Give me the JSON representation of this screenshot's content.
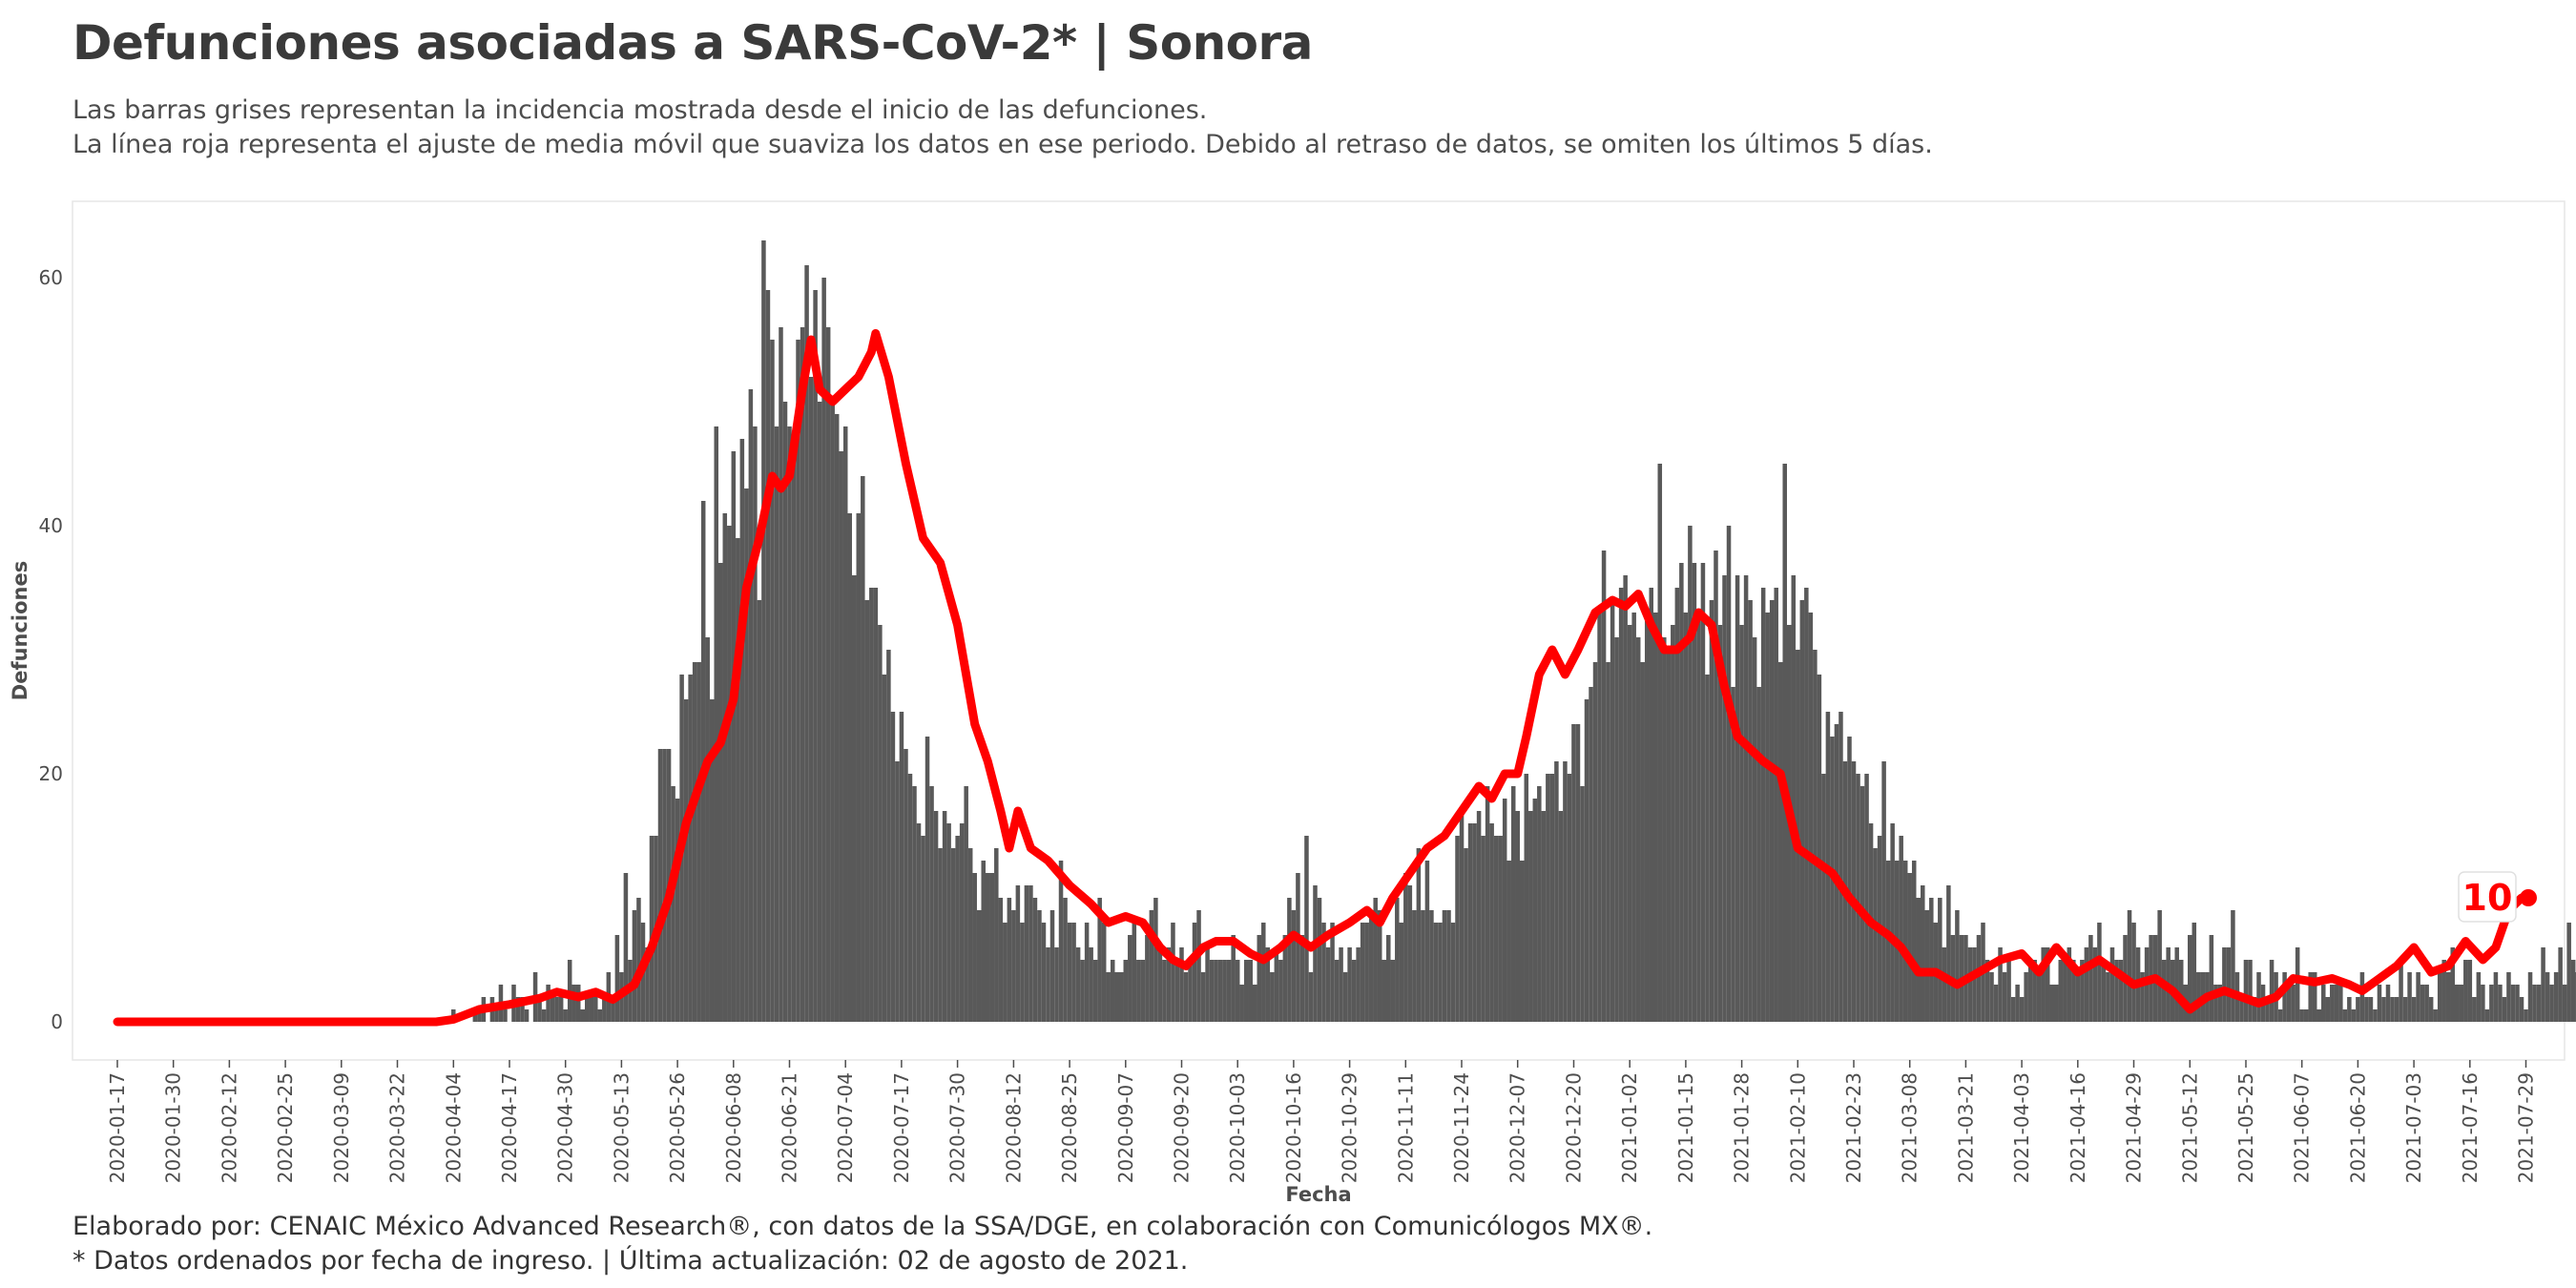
{
  "title": "Defunciones asociadas a SARS-CoV-2* | Sonora",
  "subtitle_lines": [
    "Las barras grises representan la incidencia mostrada desde el inicio de las defunciones.",
    "La línea roja representa el ajuste de media móvil que suaviza los datos en ese periodo. Debido al retraso de datos, se omiten los últimos 5 días."
  ],
  "caption_lines": [
    "Elaborado por: CENAIC México Advanced Research®, con datos de la SSA/DGE, en colaboración con Comunicólogos MX®.",
    "* Datos ordenados por fecha de ingreso. | Última actualización: 02 de agosto de 2021."
  ],
  "colors": {
    "bars": "#595959",
    "line": "#ff0000",
    "panel_border": "#e6e6e6"
  },
  "chart_data": {
    "type": "bar",
    "xlabel": "Fecha",
    "ylabel": "Defunciones",
    "x_range": [
      "2020-01-17",
      "2021-07-28"
    ],
    "ylim": [
      0,
      63
    ],
    "y_ticks": [
      0,
      20,
      40,
      60
    ],
    "x_ticks": [
      "2020-01-17",
      "2020-01-30",
      "2020-02-12",
      "2020-02-25",
      "2020-03-09",
      "2020-03-22",
      "2020-04-04",
      "2020-04-17",
      "2020-04-30",
      "2020-05-13",
      "2020-05-26",
      "2020-06-08",
      "2020-06-21",
      "2020-07-04",
      "2020-07-17",
      "2020-07-30",
      "2020-08-12",
      "2020-08-25",
      "2020-09-07",
      "2020-09-20",
      "2020-10-03",
      "2020-10-16",
      "2020-10-29",
      "2020-11-11",
      "2020-11-24",
      "2020-12-07",
      "2020-12-20",
      "2021-01-02",
      "2021-01-15",
      "2021-01-28",
      "2021-02-10",
      "2021-02-23",
      "2021-03-08",
      "2021-03-21",
      "2021-04-03",
      "2021-04-16",
      "2021-04-29",
      "2021-05-12",
      "2021-05-25",
      "2021-06-07",
      "2021-06-20",
      "2021-07-03",
      "2021-07-16",
      "2021-07-29"
    ],
    "grid": false,
    "legend": "none",
    "bars": {
      "start_date": "2020-01-17",
      "values": [
        0,
        0,
        0,
        0,
        0,
        0,
        0,
        0,
        0,
        0,
        0,
        0,
        0,
        0,
        0,
        0,
        0,
        0,
        0,
        0,
        0,
        0,
        0,
        0,
        0,
        0,
        0,
        0,
        0,
        0,
        0,
        0,
        0,
        0,
        0,
        0,
        0,
        0,
        0,
        0,
        0,
        0,
        0,
        0,
        0,
        0,
        0,
        0,
        0,
        0,
        0,
        0,
        0,
        0,
        0,
        0,
        0,
        0,
        0,
        0,
        0,
        0,
        0,
        0,
        0,
        0,
        0,
        0,
        0,
        0,
        0,
        0,
        0,
        0,
        0,
        0,
        0,
        0,
        1,
        0,
        0,
        0,
        0,
        1,
        1,
        2,
        0,
        2,
        1,
        3,
        1,
        0,
        3,
        2,
        2,
        1,
        0,
        4,
        2,
        1,
        3,
        2,
        2,
        2,
        1,
        5,
        3,
        3,
        1,
        2,
        2,
        2,
        1,
        2,
        4,
        2,
        7,
        4,
        12,
        5,
        9,
        10,
        8,
        6,
        15,
        15,
        22,
        22,
        22,
        19,
        18,
        28,
        26,
        28,
        29,
        29,
        42,
        31,
        26,
        48,
        37,
        41,
        40,
        46,
        39,
        47,
        43,
        51,
        48,
        34,
        63,
        59,
        55,
        48,
        56,
        50,
        48,
        47,
        55,
        56,
        61,
        52,
        59,
        50,
        60,
        56,
        50,
        49,
        46,
        48,
        41,
        36,
        41,
        44,
        34,
        35,
        35,
        32,
        28,
        30,
        25,
        21,
        25,
        22,
        20,
        19,
        16,
        15,
        23,
        19,
        17,
        14,
        17,
        16,
        14,
        15,
        16,
        19,
        14,
        12,
        9,
        13,
        12,
        12,
        14,
        10,
        8,
        10,
        9,
        11,
        8,
        11,
        11,
        10,
        9,
        8,
        6,
        9,
        6,
        13,
        10,
        8,
        8,
        6,
        5,
        8,
        6,
        5,
        10,
        8,
        4,
        5,
        4,
        4,
        5,
        7,
        8,
        5,
        5,
        7,
        9,
        10,
        6,
        5,
        6,
        8,
        5,
        6,
        4,
        5,
        8,
        9,
        4,
        6,
        5,
        5,
        5,
        5,
        5,
        7,
        5,
        3,
        5,
        5,
        3,
        7,
        8,
        6,
        4,
        6,
        5,
        7,
        10,
        9,
        12,
        7,
        15,
        4,
        11,
        10,
        8,
        6,
        8,
        5,
        6,
        4,
        6,
        5,
        6,
        8,
        8,
        9,
        10,
        9,
        5,
        7,
        5,
        10,
        8,
        12,
        11,
        9,
        14,
        9,
        13,
        9,
        8,
        8,
        9,
        9,
        8,
        15,
        17,
        14,
        16,
        16,
        17,
        15,
        19,
        16,
        15,
        15,
        18,
        13,
        19,
        17,
        13,
        20,
        17,
        18,
        19,
        17,
        20,
        20,
        21,
        17,
        21,
        20,
        24,
        24,
        19,
        26,
        27,
        29,
        33,
        38,
        29,
        34,
        31,
        35,
        36,
        32,
        33,
        31,
        29,
        33,
        35,
        33,
        45,
        31,
        30,
        32,
        35,
        37,
        33,
        40,
        37,
        33,
        37,
        28,
        34,
        38,
        32,
        36,
        40,
        27,
        36,
        32,
        36,
        34,
        31,
        27,
        35,
        33,
        34,
        35,
        29,
        45,
        32,
        36,
        30,
        34,
        35,
        33,
        30,
        28,
        20,
        25,
        23,
        24,
        25,
        21,
        23,
        21,
        20,
        19,
        20,
        16,
        14,
        15,
        21,
        13,
        16,
        13,
        15,
        13,
        12,
        13,
        10,
        11,
        9,
        10,
        8,
        10,
        6,
        11,
        7,
        9,
        7,
        7,
        6,
        6,
        7,
        8,
        5,
        4,
        3,
        6,
        4,
        5,
        2,
        3,
        2,
        4,
        5,
        5,
        4,
        6,
        6,
        3,
        3,
        5,
        5,
        6,
        5,
        4,
        5,
        6,
        7,
        6,
        8,
        5,
        4,
        6,
        5,
        5,
        7,
        9,
        8,
        6,
        4,
        6,
        7,
        7,
        9,
        5,
        6,
        5,
        6,
        5,
        3,
        7,
        8,
        4,
        4,
        4,
        7,
        3,
        3,
        6,
        6,
        9,
        4,
        2,
        5,
        5,
        2,
        4,
        3,
        2,
        5,
        4,
        1,
        4,
        3,
        3,
        6,
        1,
        1,
        4,
        4,
        1,
        3,
        2,
        3,
        3,
        3,
        1,
        2,
        1,
        2,
        4,
        2,
        2,
        1,
        3,
        2,
        3,
        2,
        2,
        5,
        2,
        4,
        2,
        4,
        3,
        3,
        2,
        1,
        4,
        5,
        4,
        6,
        3,
        3,
        5,
        5,
        2,
        4,
        3,
        1,
        3,
        4,
        3,
        2,
        4,
        3,
        3,
        2,
        1,
        4,
        3,
        3,
        6,
        4,
        3,
        4,
        6,
        3,
        8,
        5,
        4,
        5,
        6,
        4,
        7,
        5,
        6,
        3,
        5,
        5,
        4,
        4,
        6,
        8,
        9,
        6,
        5,
        8,
        5,
        7,
        7,
        10,
        8,
        9,
        5,
        4,
        8,
        12,
        10,
        11,
        13,
        14,
        9
      ]
    },
    "moving_average": {
      "start_date": "2020-01-17",
      "end_date": "2021-07-28",
      "points": [
        [
          "2020-01-17",
          0
        ],
        [
          "2020-02-15",
          0
        ],
        [
          "2020-03-15",
          0
        ],
        [
          "2020-03-31",
          0
        ],
        [
          "2020-04-04",
          0.2
        ],
        [
          "2020-04-10",
          1
        ],
        [
          "2020-04-17",
          1.4
        ],
        [
          "2020-04-24",
          1.9
        ],
        [
          "2020-04-28",
          2.4
        ],
        [
          "2020-05-03",
          2
        ],
        [
          "2020-05-07",
          2.4
        ],
        [
          "2020-05-11",
          1.8
        ],
        [
          "2020-05-16",
          3
        ],
        [
          "2020-05-20",
          6
        ],
        [
          "2020-05-24",
          10
        ],
        [
          "2020-05-28",
          16
        ],
        [
          "2020-06-02",
          21
        ],
        [
          "2020-06-05",
          22.5
        ],
        [
          "2020-06-08",
          26
        ],
        [
          "2020-06-11",
          35
        ],
        [
          "2020-06-14",
          39
        ],
        [
          "2020-06-17",
          44
        ],
        [
          "2020-06-19",
          43
        ],
        [
          "2020-06-21",
          44
        ],
        [
          "2020-06-24",
          51
        ],
        [
          "2020-06-26",
          55
        ],
        [
          "2020-06-28",
          51
        ],
        [
          "2020-07-01",
          50
        ],
        [
          "2020-07-04",
          51
        ],
        [
          "2020-07-07",
          52
        ],
        [
          "2020-07-10",
          54
        ],
        [
          "2020-07-11",
          55.5
        ],
        [
          "2020-07-14",
          52
        ],
        [
          "2020-07-18",
          45
        ],
        [
          "2020-07-22",
          39
        ],
        [
          "2020-07-26",
          37
        ],
        [
          "2020-07-30",
          32
        ],
        [
          "2020-08-03",
          24
        ],
        [
          "2020-08-06",
          21
        ],
        [
          "2020-08-09",
          17
        ],
        [
          "2020-08-11",
          14
        ],
        [
          "2020-08-13",
          17
        ],
        [
          "2020-08-16",
          14
        ],
        [
          "2020-08-20",
          13
        ],
        [
          "2020-08-25",
          11
        ],
        [
          "2020-08-30",
          9.5
        ],
        [
          "2020-09-03",
          8
        ],
        [
          "2020-09-07",
          8.5
        ],
        [
          "2020-09-11",
          8
        ],
        [
          "2020-09-15",
          6
        ],
        [
          "2020-09-18",
          5
        ],
        [
          "2020-09-21",
          4.5
        ],
        [
          "2020-09-25",
          6
        ],
        [
          "2020-09-28",
          6.5
        ],
        [
          "2020-10-02",
          6.5
        ],
        [
          "2020-10-06",
          5.5
        ],
        [
          "2020-10-09",
          5
        ],
        [
          "2020-10-13",
          6
        ],
        [
          "2020-10-16",
          7
        ],
        [
          "2020-10-20",
          6
        ],
        [
          "2020-10-24",
          7
        ],
        [
          "2020-10-29",
          8
        ],
        [
          "2020-11-02",
          9
        ],
        [
          "2020-11-05",
          8
        ],
        [
          "2020-11-08",
          10
        ],
        [
          "2020-11-12",
          12
        ],
        [
          "2020-11-16",
          14
        ],
        [
          "2020-11-20",
          15
        ],
        [
          "2020-11-24",
          17
        ],
        [
          "2020-11-28",
          19
        ],
        [
          "2020-12-01",
          18
        ],
        [
          "2020-12-04",
          20
        ],
        [
          "2020-12-07",
          20
        ],
        [
          "2020-12-09",
          23
        ],
        [
          "2020-12-12",
          28
        ],
        [
          "2020-12-15",
          30
        ],
        [
          "2020-12-18",
          28
        ],
        [
          "2020-12-21",
          30
        ],
        [
          "2020-12-25",
          33
        ],
        [
          "2020-12-29",
          34
        ],
        [
          "2021-01-01",
          33.5
        ],
        [
          "2021-01-04",
          34.5
        ],
        [
          "2021-01-07",
          32
        ],
        [
          "2021-01-10",
          30
        ],
        [
          "2021-01-13",
          30
        ],
        [
          "2021-01-16",
          31
        ],
        [
          "2021-01-18",
          33
        ],
        [
          "2021-01-21",
          32
        ],
        [
          "2021-01-24",
          27
        ],
        [
          "2021-01-27",
          23
        ],
        [
          "2021-01-30",
          22
        ],
        [
          "2021-02-02",
          21
        ],
        [
          "2021-02-06",
          20
        ],
        [
          "2021-02-10",
          14
        ],
        [
          "2021-02-14",
          13
        ],
        [
          "2021-02-18",
          12
        ],
        [
          "2021-02-22",
          10
        ],
        [
          "2021-02-27",
          8
        ],
        [
          "2021-03-03",
          7
        ],
        [
          "2021-03-06",
          6
        ],
        [
          "2021-03-10",
          4
        ],
        [
          "2021-03-14",
          4
        ],
        [
          "2021-03-19",
          3
        ],
        [
          "2021-03-24",
          4
        ],
        [
          "2021-03-29",
          5
        ],
        [
          "2021-04-03",
          5.5
        ],
        [
          "2021-04-07",
          4
        ],
        [
          "2021-04-11",
          6
        ],
        [
          "2021-04-16",
          4
        ],
        [
          "2021-04-21",
          5
        ],
        [
          "2021-04-25",
          4
        ],
        [
          "2021-04-29",
          3
        ],
        [
          "2021-05-04",
          3.5
        ],
        [
          "2021-05-08",
          2.5
        ],
        [
          "2021-05-12",
          1
        ],
        [
          "2021-05-16",
          2
        ],
        [
          "2021-05-20",
          2.5
        ],
        [
          "2021-05-24",
          2
        ],
        [
          "2021-05-28",
          1.5
        ],
        [
          "2021-06-01",
          2
        ],
        [
          "2021-06-05",
          3.5
        ],
        [
          "2021-06-10",
          3.2
        ],
        [
          "2021-06-14",
          3.5
        ],
        [
          "2021-06-18",
          3
        ],
        [
          "2021-06-21",
          2.5
        ],
        [
          "2021-06-25",
          3.5
        ],
        [
          "2021-06-29",
          4.5
        ],
        [
          "2021-07-03",
          6
        ],
        [
          "2021-07-07",
          4
        ],
        [
          "2021-07-11",
          4.5
        ],
        [
          "2021-07-15",
          6.5
        ],
        [
          "2021-07-19",
          5
        ],
        [
          "2021-07-22",
          6
        ],
        [
          "2021-07-25",
          9
        ],
        [
          "2021-07-28",
          10
        ]
      ]
    },
    "annotations": [
      {
        "date": "2021-07-28",
        "value": 10,
        "label": "10"
      }
    ]
  }
}
